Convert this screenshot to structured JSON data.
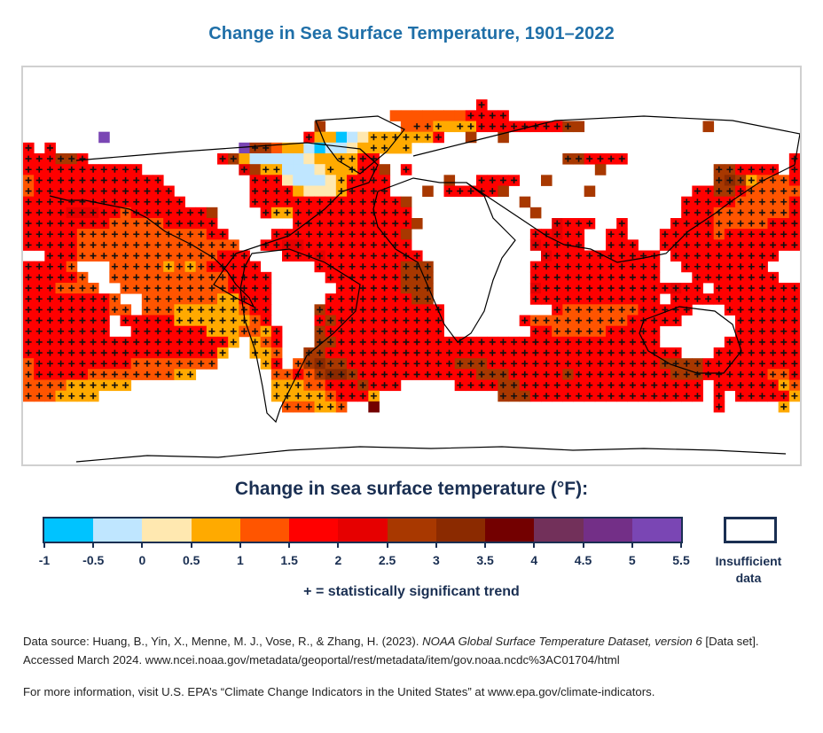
{
  "title": "Change in Sea Surface Temperature, 1901–2022",
  "legend": {
    "title": "Change in sea surface temperature (°F):",
    "bins": [
      {
        "code": "a",
        "range": [
          -1,
          -0.5
        ],
        "color": "#00c3ff"
      },
      {
        "code": "b",
        "range": [
          -0.5,
          0
        ],
        "color": "#bfe6ff"
      },
      {
        "code": "c",
        "range": [
          0,
          0.5
        ],
        "color": "#ffe8b0"
      },
      {
        "code": "d",
        "range": [
          0.5,
          1
        ],
        "color": "#ffaa00"
      },
      {
        "code": "e",
        "range": [
          1,
          1.5
        ],
        "color": "#ff5500"
      },
      {
        "code": "f",
        "range": [
          1.5,
          2
        ],
        "color": "#ff0000"
      },
      {
        "code": "g",
        "range": [
          2,
          2.5
        ],
        "color": "#e60000"
      },
      {
        "code": "h",
        "range": [
          2.5,
          3
        ],
        "color": "#a83800"
      },
      {
        "code": "i",
        "range": [
          3,
          3.5
        ],
        "color": "#8b2a00"
      },
      {
        "code": "j",
        "range": [
          3.5,
          4
        ],
        "color": "#730000"
      },
      {
        "code": "k",
        "range": [
          4,
          4.5
        ],
        "color": "#72305a"
      },
      {
        "code": "l",
        "range": [
          4.5,
          5
        ],
        "color": "#732f87"
      },
      {
        "code": "m",
        "range": [
          5,
          5.5
        ],
        "color": "#7a46b4"
      }
    ],
    "tick_labels": [
      "-1",
      "-0.5",
      "0",
      "0.5",
      "1",
      "1.5",
      "2",
      "2.5",
      "3",
      "3.5",
      "4",
      "4.5",
      "5",
      "5.5"
    ],
    "insufficient_label": "Insufficient data",
    "insufficient_color": "#ffffff",
    "significance_note": "+ = statistically significant trend"
  },
  "source_text": {
    "prefix": "Data source: Huang, B., Yin, X., Menne, M. J., Vose, R., & Zhang, H. (2023). ",
    "dataset": "NOAA Global Surface Temperature Dataset, version 6",
    "suffix": "  [Data set]. Accessed March 2024. www.ncei.noaa.gov/metadata/geoportal/rest/metadata/item/gov.noaa.ncdc%3AC01704/html"
  },
  "more_info": "For more information, visit U.S. EPA’s “Climate Change Indicators in the United States” at www.epa.gov/climate-indicators.",
  "chart_data": {
    "type": "heatmap",
    "title": "Change in Sea Surface Temperature, 1901–2022",
    "units": "°F",
    "grid": {
      "lon_start": -180,
      "lon_step": 5,
      "cols": 72,
      "lat_start": 75,
      "lat_step": -5,
      "rows": 30,
      "encoding": "one char per 5° cell; '.' = insufficient data / land; lowercase letter = legend bin code; uppercase = same bin with statistically significant trend (+)"
    },
    "rows": [
      "........................................................................",
      "..........................................F.............................",
      "..................................eeeeeeeFFFF...........................",
      "...........................h.......eEEDdDDFFFFFFFFHh...........h........",
      ".......m..................FddabcDDDDDDF..h..h...........................",
      "F.F.................mHHeddbabbcdDDdD....................................",
      "FFFHHF............FHdbbbbbcddDDFF.................HHFFFF...............F",
      "FFFFFFFFFFF.........GhDDbbbcDdDFFh.F.................h..........HHFFFF.F",
      "EFFFFFFFFFFFF........FFFcbbbcDFFFF.....h..FFFF..h...............HIHDEEEF",
      "EFFFFFFFFFFFFF.......FFFFdcccDFFFF...h.FFFFFh.......h.........FFHHFEEEEE",
      "FFFFFFFFFFFFFFF......FFFFFFFFFFFFFFh..........h..............FFFFFEEEEEF",
      "FFFFGGGFFEFFFFFFFh....FDDFFFFFFFFFFF...........h.............FFFEEEEEEEF",
      "FFFFFFFFEEEEEFFFFF.......FFFFFFFFFFFh............GFFF..F....FFFFEEEEEFFF",
      "FFFFFEEEEEEEEEEEEFF....FFFFFFFFFFFFh...........FFGFF..FF...FFFFFEFFFFFFF",
      "FFFFFEEEEEEEEEEEEEEE..FFGGFFFFFFFFFF...........GFFFF..FFF..FFFFFFFFFFFFF",
      "..FFFEEEEEEEEEEEEEFFF...FFFGFFFFFFFFF...........GFFFFFFFFFF.FFFFFFFFFF..",
      "FFFFE...EEEEEDEDEFFFFF.....FFFFFFFFHHH.........FFFFFFFFFFFF..FFFFFFFF...",
      "FFFFFE..EEEEEEEEEEEFFFF.....FFFFFFFHHH.........FFFFFFFFFFFF...FFFFFFFF..",
      "FFFEEEE..EEEEEEEEEEFFFF......FFFFFFHHH.........GFFFFFFFFFFFFGFF.FFFFFFFF",
      "FFFFFFFFE..EEEEEEEDDFFF.....FFFFFFFFHH.........FFFFFFFFFFFF.FFFFFFFFFFFF",
      "FFFFFFFFEE.EEEDDDDDDEFF....HFFFFFFFFFFF..........FEEEEEEEFFFFF...FFFFFFFF",
      "FFFFFFFF.FFFFFDDDDDDDEF....FHFFFFFFFFFF.......FEEEEEEEEEFFFFF.....FFFFFFF",
      "FFFFFFFF..FFFFFFFDDDEEDF...HFFFFFFFFFFF........FFEEEEEFFFFF.......FFFFFFF",
      "FFFFFFFFFFFFFFFFFFFD.DEF...HHFFFFFFFFFFFFFFFFFFFFFFFFFFFFFF......FFFFFFFF",
      "FFFFFFFFFFFFFFFFFFD..DDE..HHFFFFFFFFFFFFFFFFFFFFFFFFFFFFFFFFF...FFFFFFFFF",
      "EFFFFFFFFFEEEEEEEE....DF.EHIHHFFFFFFFFFFHHHFFFFFFFFFFFFFFFFHHHHFFFFFFFFF",
      "EFFFFFEEEEEEEEDD.......EEFEHIIHFFFFFFFFFFFHHHFFFFFHFFFFFFFFFHHHFFFFFFEEF",
      "EEEEDDDDDD.............DDDEEFFFHFFF.....FFFFHHFFFFFFFFFFFFFFFFF.FFFFFFDEE",
      "EEEDDDD................DDDDDEFFFD...........HHHFFFFFFFFFFFFFFFF.F.FFFFFDE",
      "........................EEEDDE..j...............................F.....D."
    ]
  }
}
